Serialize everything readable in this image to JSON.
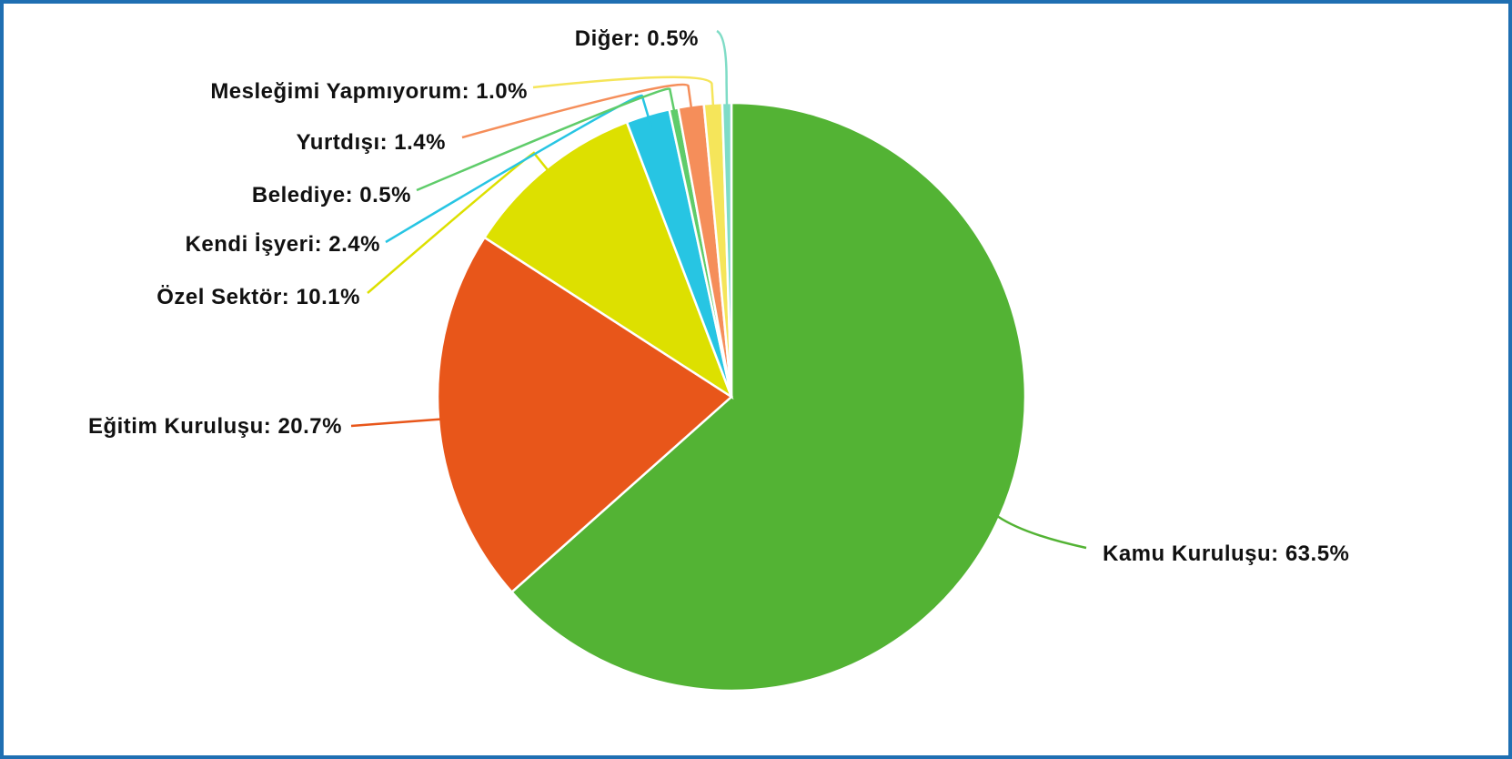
{
  "chart_data": {
    "type": "pie",
    "slices": [
      {
        "label": "Kamu Kuruluşu: 63.5%",
        "value": 63.5,
        "color": "#53b334"
      },
      {
        "label": "Eğitim Kuruluşu: 20.7%",
        "value": 20.7,
        "color": "#e8561a"
      },
      {
        "label": "Özel Sektör: 10.1%",
        "value": 10.1,
        "color": "#dde000"
      },
      {
        "label": "Kendi İşyeri: 2.4%",
        "value": 2.4,
        "color": "#27c5e3"
      },
      {
        "label": "Belediye: 0.5%",
        "value": 0.5,
        "color": "#5fcc6a"
      },
      {
        "label": "Yurtdışı: 1.4%",
        "value": 1.4,
        "color": "#f58e5a"
      },
      {
        "label": "Mesleğimi Yapmıyorum: 1.0%",
        "value": 1.0,
        "color": "#f5e55a"
      },
      {
        "label": "Diğer: 0.5%",
        "value": 0.5,
        "color": "#7fdcc6"
      }
    ],
    "title": "",
    "legend": "none",
    "labels": "outside-with-leader-lines",
    "start_angle": "12 o'clock",
    "direction": "clockwise"
  }
}
